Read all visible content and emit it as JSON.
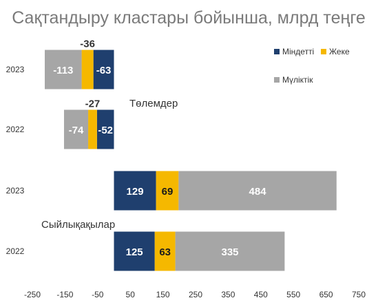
{
  "chart_data": {
    "type": "bar",
    "orientation": "horizontal",
    "stacked": true,
    "title": "Сақтандыру кластары бойынша, млрд теңге",
    "xlim": [
      -250,
      750
    ],
    "x_ticks": [
      "-250",
      "-150",
      "-50",
      "50",
      "150",
      "250",
      "350",
      "450",
      "550",
      "650",
      "750"
    ],
    "grid": false,
    "legend_position": "top-right",
    "groups": [
      {
        "label": "Төлемдер",
        "categories": [
          "2023",
          "2022"
        ]
      },
      {
        "label": "Сыйлықақылар",
        "categories": [
          "2023",
          "2022"
        ]
      }
    ],
    "categories": [
      "2023",
      "2022",
      "2023",
      "2022"
    ],
    "series": [
      {
        "name": "Міндетті",
        "color": "#1f3f6e",
        "values": [
          -63,
          -52,
          129,
          125
        ]
      },
      {
        "name": "Жеке",
        "color": "#f5b800",
        "values": [
          -36,
          -27,
          69,
          63
        ]
      },
      {
        "name": "Мүліктік",
        "color": "#a6a6a6",
        "values": [
          -113,
          -74,
          484,
          335
        ]
      }
    ],
    "bar_labels": [
      [
        "-63",
        "-52",
        "129",
        "125"
      ],
      [
        "-36",
        "-27",
        "69",
        "63"
      ],
      [
        "-113",
        "-74",
        "484",
        "335"
      ]
    ]
  }
}
